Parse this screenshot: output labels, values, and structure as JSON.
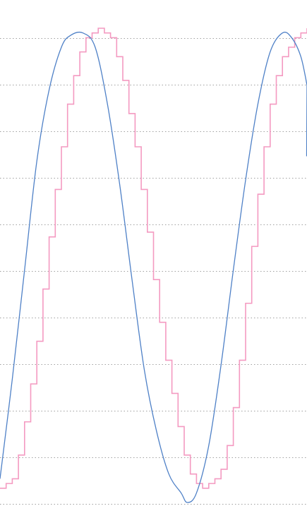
{
  "chart_data": {
    "type": "line",
    "title": "",
    "xlabel": "",
    "ylabel": "",
    "grid": true,
    "colors": {
      "grid": "#a0a0a0",
      "sine": "#4f81c7",
      "steps": "#f49ac1"
    },
    "x_range": [
      0,
      1
    ],
    "y_range": [
      0,
      1
    ],
    "series": [
      {
        "kind": "smooth",
        "points": [
          [
            0.0,
            0.05
          ],
          [
            0.04,
            0.26
          ],
          [
            0.08,
            0.49
          ],
          [
            0.12,
            0.72
          ],
          [
            0.16,
            0.87
          ],
          [
            0.2,
            0.96
          ],
          [
            0.23,
            0.985
          ],
          [
            0.27,
            0.99
          ],
          [
            0.31,
            0.96
          ],
          [
            0.35,
            0.84
          ],
          [
            0.39,
            0.67
          ],
          [
            0.43,
            0.47
          ],
          [
            0.47,
            0.28
          ],
          [
            0.51,
            0.15
          ],
          [
            0.55,
            0.06
          ],
          [
            0.59,
            0.02
          ],
          [
            0.61,
            0.0
          ],
          [
            0.64,
            0.02
          ],
          [
            0.68,
            0.12
          ],
          [
            0.72,
            0.29
          ],
          [
            0.76,
            0.49
          ],
          [
            0.8,
            0.68
          ],
          [
            0.84,
            0.84
          ],
          [
            0.88,
            0.95
          ],
          [
            0.92,
            0.99
          ],
          [
            0.95,
            0.98
          ],
          [
            0.98,
            0.94
          ],
          [
            1.0,
            0.88
          ]
        ],
        "tail_to": 0.73
      },
      {
        "kind": "step",
        "points": [
          [
            0.0,
            0.03
          ],
          [
            0.02,
            0.04
          ],
          [
            0.04,
            0.05
          ],
          [
            0.06,
            0.1
          ],
          [
            0.08,
            0.17
          ],
          [
            0.1,
            0.25
          ],
          [
            0.12,
            0.34
          ],
          [
            0.14,
            0.45
          ],
          [
            0.16,
            0.56
          ],
          [
            0.18,
            0.66
          ],
          [
            0.2,
            0.75
          ],
          [
            0.22,
            0.84
          ],
          [
            0.24,
            0.9
          ],
          [
            0.26,
            0.95
          ],
          [
            0.28,
            0.98
          ],
          [
            0.3,
            0.99
          ],
          [
            0.32,
            1.0
          ],
          [
            0.34,
            0.99
          ],
          [
            0.36,
            0.98
          ],
          [
            0.38,
            0.94
          ],
          [
            0.4,
            0.89
          ],
          [
            0.42,
            0.82
          ],
          [
            0.44,
            0.75
          ],
          [
            0.46,
            0.66
          ],
          [
            0.48,
            0.57
          ],
          [
            0.5,
            0.47
          ],
          [
            0.52,
            0.38
          ],
          [
            0.54,
            0.3
          ],
          [
            0.56,
            0.23
          ],
          [
            0.58,
            0.16
          ],
          [
            0.6,
            0.1
          ],
          [
            0.62,
            0.06
          ],
          [
            0.64,
            0.04
          ],
          [
            0.66,
            0.03
          ],
          [
            0.68,
            0.04
          ],
          [
            0.7,
            0.05
          ],
          [
            0.72,
            0.07
          ],
          [
            0.74,
            0.12
          ],
          [
            0.76,
            0.2
          ],
          [
            0.78,
            0.3
          ],
          [
            0.8,
            0.42
          ],
          [
            0.82,
            0.54
          ],
          [
            0.84,
            0.65
          ],
          [
            0.86,
            0.75
          ],
          [
            0.88,
            0.84
          ],
          [
            0.9,
            0.9
          ],
          [
            0.92,
            0.94
          ],
          [
            0.94,
            0.96
          ],
          [
            0.96,
            0.98
          ],
          [
            0.98,
            0.99
          ],
          [
            1.0,
            1.0
          ]
        ]
      }
    ]
  }
}
